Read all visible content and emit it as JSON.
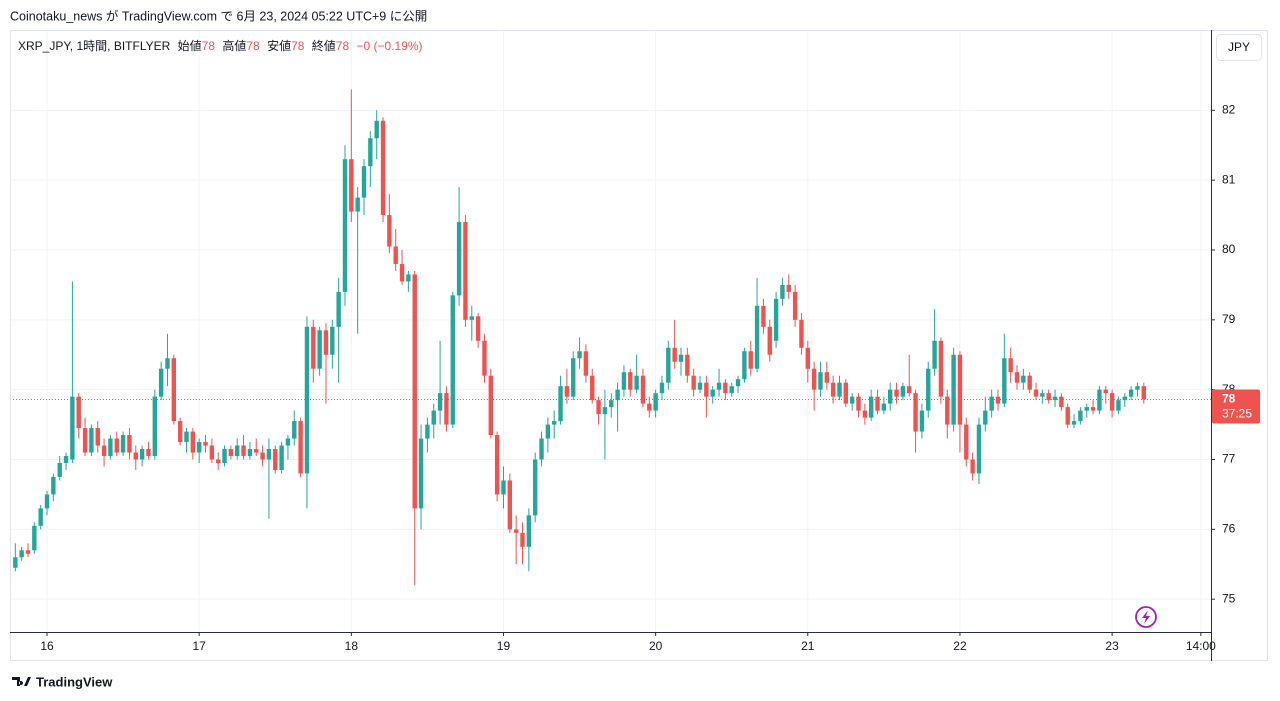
{
  "header": {
    "published": "Coinotaku_news が TradingView.com で 6月 23, 2024 05:22 UTC+9 に公開"
  },
  "legend": {
    "symbol": "XRP_JPY, 1時間, BITFLYER",
    "open_label": "始値",
    "open": "78",
    "high_label": "高値",
    "high": "78",
    "low_label": "安値",
    "low": "78",
    "close_label": "終値",
    "close": "78",
    "change": "−0 (−0.19%)"
  },
  "currency_button": "JPY",
  "footer": {
    "brand": "TradingView"
  },
  "chart_data": {
    "type": "candlestick",
    "up_color": "#26a69a",
    "down_color": "#ef5350",
    "grid": true,
    "ylim": [
      74.53,
      83.15
    ],
    "yticks": [
      75,
      76,
      77,
      78,
      79,
      80,
      81,
      82
    ],
    "xlim": [
      -0.84,
      188.6
    ],
    "xticks": [
      {
        "value": 5,
        "label": "16"
      },
      {
        "value": 29,
        "label": "17"
      },
      {
        "value": 53,
        "label": "18"
      },
      {
        "value": 77,
        "label": "19"
      },
      {
        "value": 101,
        "label": "20"
      },
      {
        "value": 125,
        "label": "21"
      },
      {
        "value": 149,
        "label": "22"
      },
      {
        "value": 173,
        "label": "23"
      },
      {
        "value": 187,
        "label": "14:00"
      }
    ],
    "last_price_label": "78",
    "countdown": "37:25",
    "candles": [
      [
        75.45,
        75.8,
        75.4,
        75.6
      ],
      [
        75.6,
        75.75,
        75.55,
        75.7
      ],
      [
        75.7,
        75.8,
        75.6,
        75.65
      ],
      [
        75.7,
        76.1,
        75.65,
        76.05
      ],
      [
        76.05,
        76.35,
        76.0,
        76.3
      ],
      [
        76.3,
        76.55,
        76.2,
        76.5
      ],
      [
        76.5,
        76.8,
        76.4,
        76.75
      ],
      [
        76.75,
        77.05,
        76.7,
        76.95
      ],
      [
        76.95,
        77.1,
        76.85,
        77.05
      ],
      [
        77.0,
        79.55,
        76.95,
        77.9
      ],
      [
        77.9,
        77.95,
        77.3,
        77.45
      ],
      [
        77.45,
        77.6,
        77.05,
        77.1
      ],
      [
        77.1,
        77.5,
        77.05,
        77.45
      ],
      [
        77.45,
        77.55,
        77.1,
        77.2
      ],
      [
        77.2,
        77.3,
        76.9,
        77.05
      ],
      [
        77.05,
        77.35,
        77.0,
        77.3
      ],
      [
        77.3,
        77.4,
        77.05,
        77.1
      ],
      [
        77.1,
        77.4,
        77.05,
        77.35
      ],
      [
        77.35,
        77.45,
        77.0,
        77.1
      ],
      [
        77.1,
        77.2,
        76.85,
        77.0
      ],
      [
        77.0,
        77.2,
        76.9,
        77.15
      ],
      [
        77.15,
        77.25,
        77.0,
        77.05
      ],
      [
        77.05,
        78.0,
        77.0,
        77.9
      ],
      [
        77.9,
        78.4,
        77.85,
        78.3
      ],
      [
        78.3,
        78.8,
        78.05,
        78.45
      ],
      [
        78.45,
        78.5,
        77.5,
        77.55
      ],
      [
        77.55,
        77.6,
        77.2,
        77.25
      ],
      [
        77.25,
        77.45,
        77.1,
        77.4
      ],
      [
        77.4,
        77.45,
        77.0,
        77.1
      ],
      [
        77.1,
        77.3,
        76.95,
        77.25
      ],
      [
        77.25,
        77.35,
        77.1,
        77.2
      ],
      [
        77.2,
        77.3,
        76.95,
        77.0
      ],
      [
        77.0,
        77.1,
        76.85,
        76.95
      ],
      [
        76.95,
        77.2,
        76.9,
        77.15
      ],
      [
        77.15,
        77.2,
        77.0,
        77.05
      ],
      [
        77.05,
        77.3,
        77.0,
        77.2
      ],
      [
        77.2,
        77.35,
        77.0,
        77.05
      ],
      [
        77.05,
        77.25,
        77.0,
        77.15
      ],
      [
        77.15,
        77.3,
        77.05,
        77.1
      ],
      [
        77.1,
        77.2,
        76.9,
        77.0
      ],
      [
        77.0,
        77.3,
        76.15,
        77.15
      ],
      [
        77.15,
        77.2,
        76.8,
        76.85
      ],
      [
        76.85,
        77.25,
        76.8,
        77.2
      ],
      [
        77.2,
        77.35,
        77.0,
        77.3
      ],
      [
        77.3,
        77.7,
        77.2,
        77.55
      ],
      [
        77.55,
        77.6,
        76.75,
        76.8
      ],
      [
        76.8,
        79.05,
        76.3,
        78.9
      ],
      [
        78.9,
        79.0,
        78.1,
        78.3
      ],
      [
        78.3,
        78.9,
        78.2,
        78.85
      ],
      [
        78.85,
        78.95,
        77.8,
        78.5
      ],
      [
        78.5,
        79.0,
        78.3,
        78.9
      ],
      [
        78.9,
        79.6,
        78.1,
        79.4
      ],
      [
        79.4,
        81.5,
        79.2,
        81.3
      ],
      [
        81.3,
        82.3,
        80.4,
        80.55
      ],
      [
        80.55,
        80.9,
        78.8,
        80.75
      ],
      [
        80.75,
        81.3,
        80.5,
        81.2
      ],
      [
        81.2,
        81.7,
        80.9,
        81.6
      ],
      [
        81.6,
        82.0,
        81.3,
        81.85
      ],
      [
        81.85,
        81.9,
        80.4,
        80.5
      ],
      [
        80.5,
        80.8,
        79.95,
        80.05
      ],
      [
        80.05,
        80.3,
        79.7,
        79.8
      ],
      [
        79.8,
        80.0,
        79.5,
        79.55
      ],
      [
        79.55,
        79.7,
        79.4,
        79.65
      ],
      [
        79.65,
        79.7,
        75.2,
        76.3
      ],
      [
        76.3,
        77.5,
        76.0,
        77.3
      ],
      [
        77.3,
        77.6,
        77.1,
        77.5
      ],
      [
        77.5,
        77.8,
        77.3,
        77.7
      ],
      [
        77.7,
        78.7,
        77.5,
        77.95
      ],
      [
        77.95,
        78.05,
        77.4,
        77.5
      ],
      [
        77.5,
        79.4,
        77.45,
        79.35
      ],
      [
        79.35,
        80.9,
        79.2,
        80.4
      ],
      [
        80.4,
        80.5,
        78.9,
        79.0
      ],
      [
        79.0,
        79.2,
        78.7,
        79.05
      ],
      [
        79.05,
        79.1,
        78.6,
        78.7
      ],
      [
        78.7,
        78.8,
        78.1,
        78.2
      ],
      [
        78.2,
        78.3,
        77.3,
        77.35
      ],
      [
        77.35,
        77.4,
        76.4,
        76.5
      ],
      [
        76.5,
        76.9,
        76.3,
        76.7
      ],
      [
        76.7,
        76.8,
        75.95,
        76.0
      ],
      [
        76.0,
        76.2,
        75.5,
        75.95
      ],
      [
        75.95,
        76.1,
        75.5,
        75.75
      ],
      [
        75.75,
        76.3,
        75.4,
        76.2
      ],
      [
        76.2,
        77.1,
        76.1,
        77.0
      ],
      [
        77.0,
        77.4,
        76.9,
        77.3
      ],
      [
        77.3,
        77.6,
        77.1,
        77.5
      ],
      [
        77.5,
        77.7,
        77.3,
        77.55
      ],
      [
        77.55,
        78.2,
        77.5,
        78.05
      ],
      [
        78.05,
        78.3,
        77.8,
        77.9
      ],
      [
        77.9,
        78.55,
        77.85,
        78.45
      ],
      [
        78.45,
        78.75,
        78.3,
        78.55
      ],
      [
        78.55,
        78.65,
        78.1,
        78.2
      ],
      [
        78.2,
        78.3,
        77.8,
        77.85
      ],
      [
        77.85,
        77.9,
        77.5,
        77.65
      ],
      [
        77.65,
        78.0,
        77.0,
        77.75
      ],
      [
        77.75,
        77.95,
        77.6,
        77.85
      ],
      [
        77.85,
        78.1,
        77.4,
        78.0
      ],
      [
        78.0,
        78.35,
        77.9,
        78.25
      ],
      [
        78.25,
        78.3,
        77.9,
        78.0
      ],
      [
        78.0,
        78.5,
        77.95,
        78.2
      ],
      [
        78.2,
        78.3,
        77.75,
        77.8
      ],
      [
        77.8,
        77.9,
        77.6,
        77.7
      ],
      [
        77.7,
        78.0,
        77.6,
        77.95
      ],
      [
        77.95,
        78.2,
        77.85,
        78.1
      ],
      [
        78.1,
        78.7,
        78.0,
        78.6
      ],
      [
        78.6,
        79.0,
        78.3,
        78.4
      ],
      [
        78.4,
        78.6,
        78.2,
        78.5
      ],
      [
        78.5,
        78.6,
        78.1,
        78.2
      ],
      [
        78.2,
        78.3,
        77.9,
        78.0
      ],
      [
        78.0,
        78.2,
        77.95,
        78.1
      ],
      [
        78.1,
        78.2,
        77.6,
        77.9
      ],
      [
        77.9,
        78.05,
        77.8,
        78.0
      ],
      [
        78.0,
        78.3,
        77.9,
        78.1
      ],
      [
        78.1,
        78.15,
        77.85,
        77.95
      ],
      [
        77.95,
        78.1,
        77.9,
        78.05
      ],
      [
        78.05,
        78.2,
        77.95,
        78.15
      ],
      [
        78.15,
        78.6,
        78.1,
        78.55
      ],
      [
        78.55,
        78.7,
        78.2,
        78.3
      ],
      [
        78.3,
        79.6,
        78.25,
        79.2
      ],
      [
        79.2,
        79.3,
        78.8,
        78.9
      ],
      [
        78.9,
        79.0,
        78.4,
        78.5
      ],
      [
        78.7,
        79.4,
        78.6,
        79.3
      ],
      [
        79.3,
        79.6,
        79.2,
        79.5
      ],
      [
        79.5,
        79.65,
        79.3,
        79.4
      ],
      [
        79.4,
        79.5,
        78.9,
        79.0
      ],
      [
        79.0,
        79.1,
        78.5,
        78.6
      ],
      [
        78.6,
        78.7,
        78.1,
        78.3
      ],
      [
        78.3,
        78.4,
        77.7,
        78.0
      ],
      [
        78.0,
        78.4,
        77.9,
        78.25
      ],
      [
        78.25,
        78.4,
        78.0,
        78.1
      ],
      [
        78.1,
        78.2,
        77.8,
        77.9
      ],
      [
        77.9,
        78.2,
        77.85,
        78.1
      ],
      [
        78.1,
        78.15,
        77.75,
        77.8
      ],
      [
        77.8,
        77.95,
        77.7,
        77.9
      ],
      [
        77.9,
        77.95,
        77.6,
        77.7
      ],
      [
        77.7,
        77.8,
        77.5,
        77.6
      ],
      [
        77.6,
        78.0,
        77.55,
        77.9
      ],
      [
        77.9,
        78.0,
        77.65,
        77.7
      ],
      [
        77.7,
        77.9,
        77.65,
        77.8
      ],
      [
        77.8,
        78.1,
        77.7,
        78.0
      ],
      [
        78.0,
        78.1,
        77.8,
        77.9
      ],
      [
        77.9,
        78.1,
        77.85,
        78.05
      ],
      [
        78.05,
        78.5,
        77.9,
        77.95
      ],
      [
        77.95,
        78.0,
        77.1,
        77.4
      ],
      [
        77.4,
        77.8,
        77.3,
        77.7
      ],
      [
        77.7,
        78.4,
        77.6,
        78.3
      ],
      [
        78.3,
        79.15,
        78.2,
        78.7
      ],
      [
        78.7,
        78.75,
        77.8,
        77.9
      ],
      [
        77.9,
        78.0,
        77.3,
        77.5
      ],
      [
        77.5,
        78.6,
        77.4,
        78.5
      ],
      [
        78.5,
        78.55,
        77.1,
        77.5
      ],
      [
        77.5,
        77.6,
        76.9,
        77.0
      ],
      [
        77.0,
        77.1,
        76.7,
        76.8
      ],
      [
        76.8,
        77.6,
        76.65,
        77.5
      ],
      [
        77.5,
        77.9,
        77.4,
        77.7
      ],
      [
        77.7,
        78.0,
        77.6,
        77.9
      ],
      [
        77.9,
        78.0,
        77.7,
        77.8
      ],
      [
        77.8,
        78.8,
        77.75,
        78.45
      ],
      [
        78.45,
        78.6,
        78.1,
        78.25
      ],
      [
        78.25,
        78.35,
        78.0,
        78.1
      ],
      [
        78.1,
        78.3,
        78.0,
        78.2
      ],
      [
        78.2,
        78.25,
        77.95,
        78.0
      ],
      [
        78.0,
        78.1,
        77.85,
        77.9
      ],
      [
        77.9,
        78.0,
        77.8,
        77.95
      ],
      [
        77.95,
        78.0,
        77.8,
        77.85
      ],
      [
        77.85,
        78.0,
        77.75,
        77.9
      ],
      [
        77.9,
        77.95,
        77.7,
        77.75
      ],
      [
        77.75,
        77.8,
        77.45,
        77.5
      ],
      [
        77.5,
        77.65,
        77.45,
        77.55
      ],
      [
        77.55,
        77.75,
        77.5,
        77.7
      ],
      [
        77.7,
        77.8,
        77.6,
        77.75
      ],
      [
        77.75,
        77.85,
        77.65,
        77.7
      ],
      [
        77.7,
        78.05,
        77.65,
        78.0
      ],
      [
        78.0,
        78.05,
        77.8,
        77.95
      ],
      [
        77.95,
        78.0,
        77.6,
        77.7
      ],
      [
        77.7,
        77.9,
        77.65,
        77.85
      ],
      [
        77.85,
        77.95,
        77.75,
        77.9
      ],
      [
        77.9,
        78.05,
        77.85,
        78.0
      ],
      [
        78.0,
        78.1,
        77.9,
        78.05
      ],
      [
        78.05,
        78.1,
        77.8,
        77.86
      ]
    ]
  }
}
